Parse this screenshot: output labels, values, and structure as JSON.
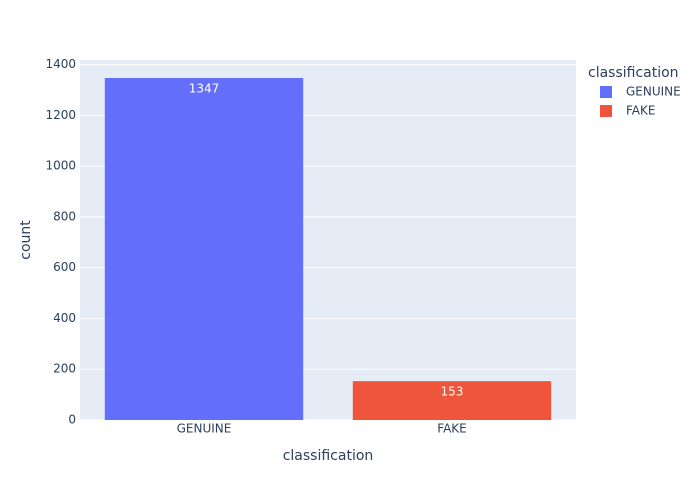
{
  "chart_data": {
    "type": "bar",
    "categories": [
      "GENUINE",
      "FAKE"
    ],
    "series": [
      {
        "name": "GENUINE",
        "color": "#636efa",
        "values": [
          1347,
          null
        ]
      },
      {
        "name": "FAKE",
        "color": "#ef553b",
        "values": [
          null,
          153
        ]
      }
    ],
    "x_label": "classification",
    "y_label": "count",
    "legend_title": "classification",
    "ylim": [
      0,
      1418
    ],
    "yticks": [
      0,
      200,
      400,
      600,
      800,
      1000,
      1200,
      1400
    ],
    "grid": true,
    "legend": "right",
    "show_value_labels": true
  }
}
